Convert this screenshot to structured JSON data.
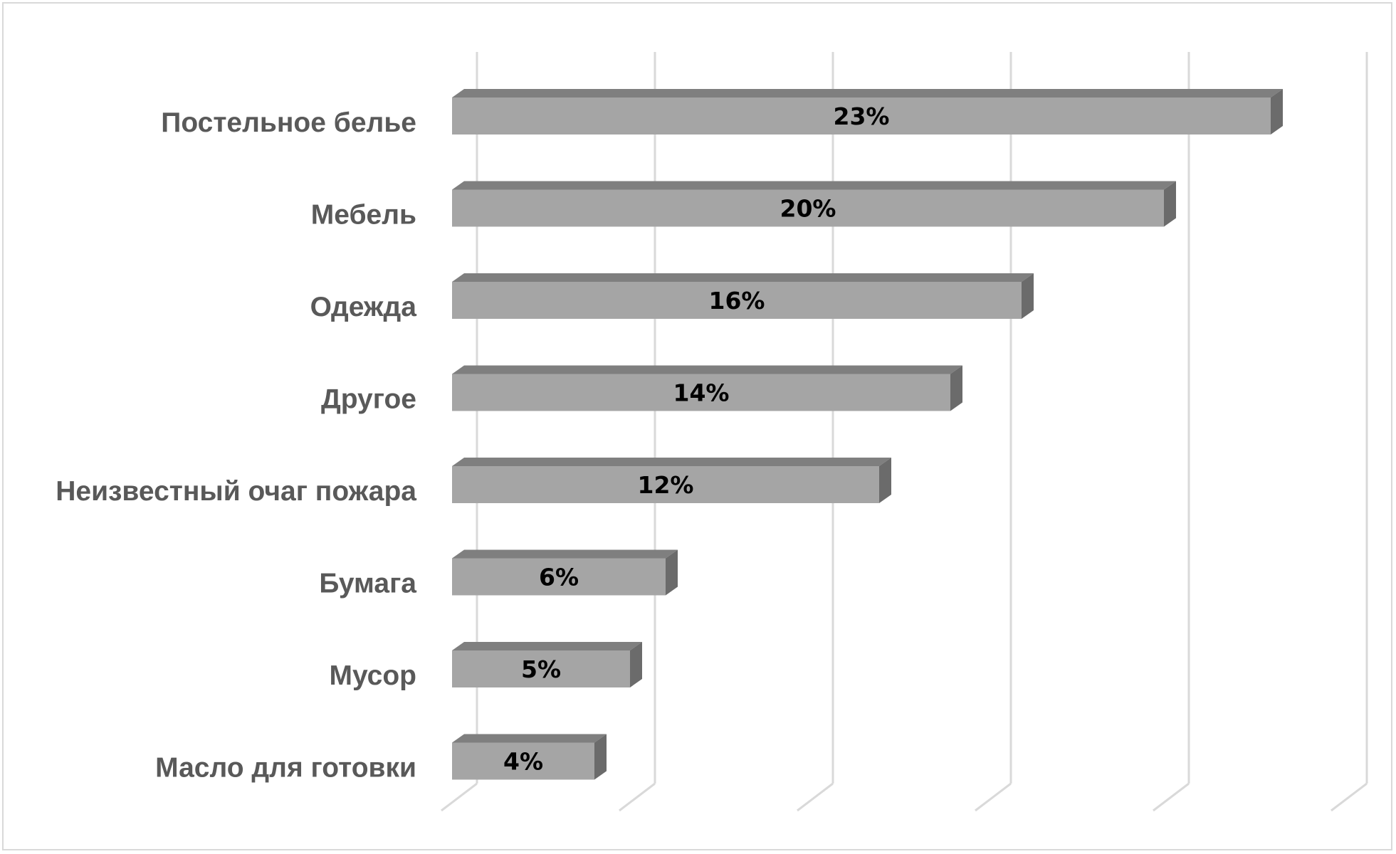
{
  "chart_data": {
    "type": "bar",
    "orientation": "horizontal",
    "style": "3d",
    "categories": [
      "Постельное белье",
      "Мебель",
      "Одежда",
      "Другое",
      "Неизвестный очаг пожара",
      "Бумага",
      "Мусор",
      "Масло для готовки"
    ],
    "values": [
      23,
      20,
      16,
      14,
      12,
      6,
      5,
      4
    ],
    "data_labels": [
      "23%",
      "20%",
      "16%",
      "14%",
      "12%",
      "6%",
      "5%",
      "4%"
    ],
    "value_unit": "%",
    "xlim": [
      0,
      25
    ],
    "grid": "vertical",
    "legend": "none",
    "colors": {
      "bar_front": "#a5a5a5",
      "bar_top": "#7f7f7f",
      "bar_side": "#6b6b6b",
      "gridline": "#d9d9d9",
      "label": "#595959"
    }
  }
}
